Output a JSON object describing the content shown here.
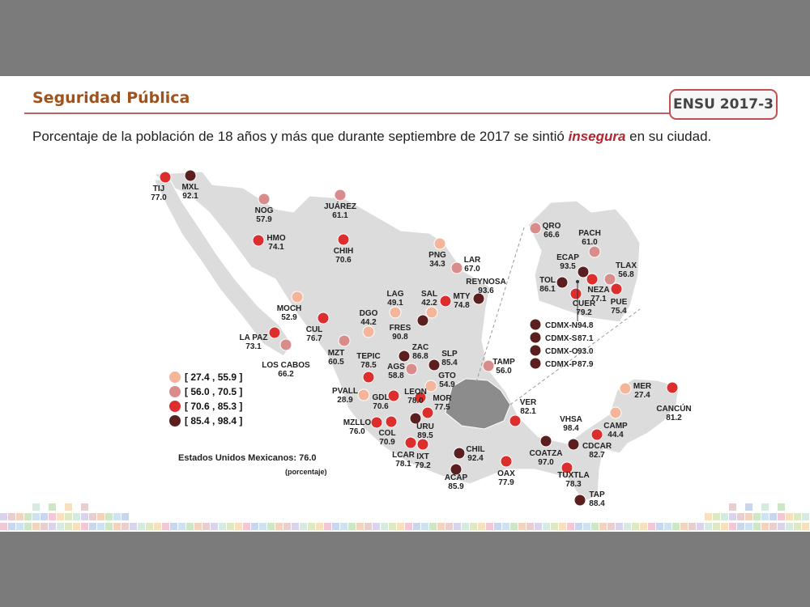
{
  "header": {
    "title": "Seguridad Pública",
    "badge": "ENSU 2017-3"
  },
  "subtitle": {
    "before": "Porcentaje de la población de 18 años y más que durante septiembre de 2017 se sintió ",
    "emphasis": "insegura",
    "after": " en su ciudad."
  },
  "national": {
    "label": "Estados Unidos Mexicanos: 76.0",
    "unit": "(porcentaje)"
  },
  "legend": [
    {
      "range": "[ 27.4 , 55.9 ]",
      "color": "#f5b59a"
    },
    {
      "range": "[ 56.0 , 70.5 ]",
      "color": "#d98c8c"
    },
    {
      "range": "[ 70.6 , 85.3 ]",
      "color": "#dd2e2e"
    },
    {
      "range": "[ 85.4 , 98.4 ]",
      "color": "#5c1f1f"
    }
  ],
  "cities": [
    {
      "code": "TIJ",
      "value": "77.0"
    },
    {
      "code": "MXL",
      "value": "92.1"
    },
    {
      "code": "NOG",
      "value": "57.9"
    },
    {
      "code": "JUÁREZ",
      "value": "61.1"
    },
    {
      "code": "HMO",
      "value": "74.1"
    },
    {
      "code": "CHIH",
      "value": "70.6"
    },
    {
      "code": "PNG",
      "value": "34.3"
    },
    {
      "code": "LAR",
      "value": "67.0"
    },
    {
      "code": "REYNOSA",
      "value": "93.6"
    },
    {
      "code": "LAG",
      "value": "49.1"
    },
    {
      "code": "SAL",
      "value": "42.2"
    },
    {
      "code": "MTY",
      "value": "74.8"
    },
    {
      "code": "MOCH",
      "value": "52.9"
    },
    {
      "code": "DGO",
      "value": "44.2"
    },
    {
      "code": "FRES",
      "value": "90.8"
    },
    {
      "code": "LA PAZ",
      "value": "73.1"
    },
    {
      "code": "CUL",
      "value": "76.7"
    },
    {
      "code": "LOS CABOS",
      "value": "66.2"
    },
    {
      "code": "MZT",
      "value": "60.5"
    },
    {
      "code": "ZAC",
      "value": "86.8"
    },
    {
      "code": "TEPIC",
      "value": "78.5"
    },
    {
      "code": "AGS",
      "value": "58.8"
    },
    {
      "code": "SLP",
      "value": "85.4"
    },
    {
      "code": "TAMP",
      "value": "56.0"
    },
    {
      "code": "GTO",
      "value": "54.9"
    },
    {
      "code": "PVALL",
      "value": "28.9"
    },
    {
      "code": "GDL",
      "value": "70.6"
    },
    {
      "code": "LEON",
      "value": "78.0"
    },
    {
      "code": "MOR",
      "value": "77.5"
    },
    {
      "code": "MZLLO",
      "value": "76.0"
    },
    {
      "code": "COL",
      "value": "70.9"
    },
    {
      "code": "URU",
      "value": "89.5"
    },
    {
      "code": "LCAR",
      "value": "78.1"
    },
    {
      "code": "IXT",
      "value": "79.2"
    },
    {
      "code": "CHIL",
      "value": "92.4"
    },
    {
      "code": "ACAP",
      "value": "85.9"
    },
    {
      "code": "OAX",
      "value": "77.9"
    },
    {
      "code": "VER",
      "value": "82.1"
    },
    {
      "code": "COATZA",
      "value": "97.0"
    },
    {
      "code": "VHSA",
      "value": "98.4"
    },
    {
      "code": "CDCAR",
      "value": "82.7"
    },
    {
      "code": "TUXTLA",
      "value": "78.3"
    },
    {
      "code": "TAP",
      "value": "88.4"
    },
    {
      "code": "CAMP",
      "value": "44.4"
    },
    {
      "code": "MER",
      "value": "27.4"
    },
    {
      "code": "CANCÚN",
      "value": "81.2"
    },
    {
      "code": "QRO",
      "value": "66.6"
    },
    {
      "code": "PACH",
      "value": "61.0"
    },
    {
      "code": "ECAP",
      "value": "93.5"
    },
    {
      "code": "TLAX",
      "value": "56.8"
    },
    {
      "code": "TOL",
      "value": "86.1"
    },
    {
      "code": "NEZA",
      "value": "77.1"
    },
    {
      "code": "PUE",
      "value": "75.4"
    },
    {
      "code": "CUER",
      "value": "79.2"
    }
  ],
  "cdmx": [
    {
      "code": "CDMX-N",
      "value": "94.8"
    },
    {
      "code": "CDMX-S",
      "value": "87.1"
    },
    {
      "code": "CDMX-O",
      "value": "93.0"
    },
    {
      "code": "CDMX-P",
      "value": "87.9"
    }
  ],
  "footer_colors": [
    "#f2c7d6",
    "#cfe6c6",
    "#d9d4ea",
    "#f6e0bd",
    "#cfe2ef",
    "#e8cfcf",
    "#dfe8c4",
    "#c9d6ec",
    "#f1d3bf",
    "#d7eadf"
  ]
}
